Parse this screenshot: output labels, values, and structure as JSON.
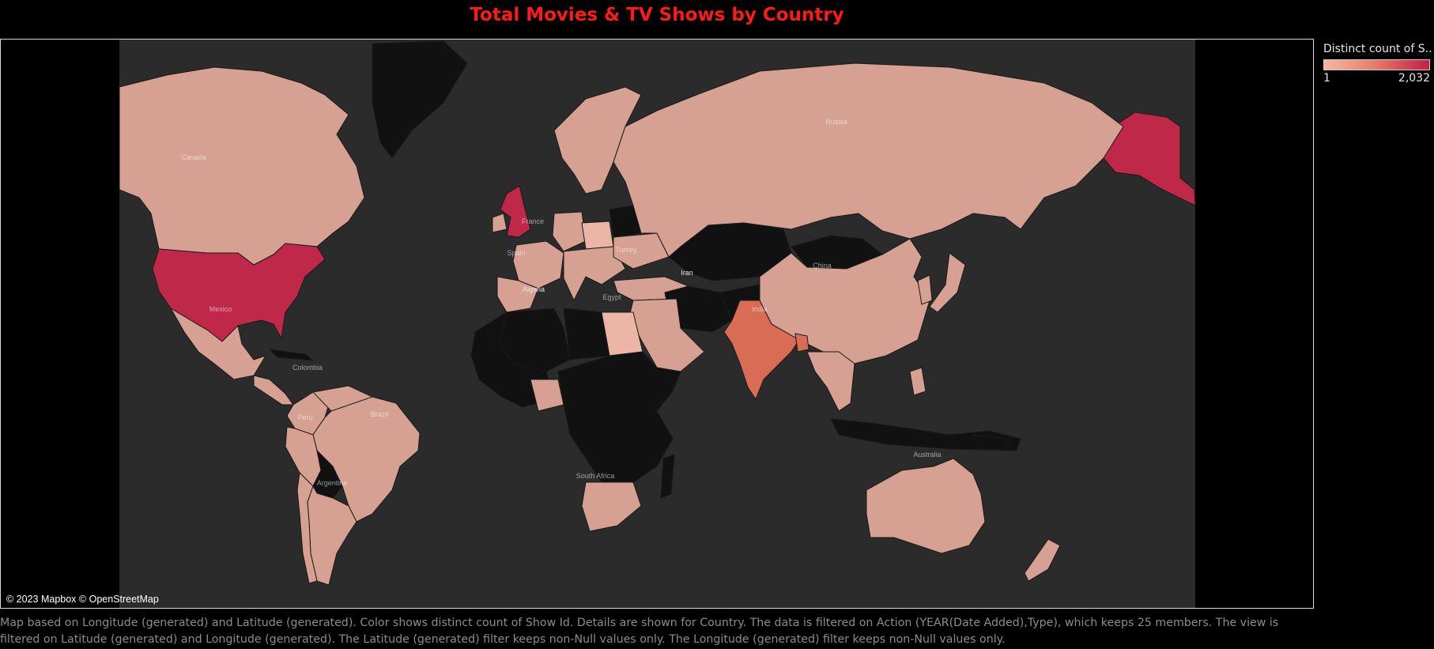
{
  "title": "Total Movies & TV Shows by Country",
  "legend": {
    "title": "Distinct count of S..",
    "min_label": "1",
    "max_label": "2,032",
    "color_low": "#f2b8a4",
    "color_high": "#c21f47"
  },
  "map": {
    "attribution": "© 2023 Mapbox © OpenStreetMap",
    "colors": {
      "ocean": "#2b2b2b",
      "high": "#c0284a",
      "medium": "#d96c55",
      "low": "#d6a092",
      "lowest": "#ecb6a6",
      "none": "#111111"
    },
    "labels": {
      "canada": "Canada",
      "russia": "Russia",
      "china": "China",
      "india": "India",
      "iran": "Iran",
      "algeria": "Algeria",
      "egypt": "Egypt",
      "brazil": "Brazil",
      "argentina": "Argentina",
      "australia": "Australia",
      "mexico": "Mexico",
      "france": "France",
      "turkey": "Turkey",
      "south_africa": "South Africa",
      "colombia": "Colombia",
      "peru": "Peru",
      "spain": "Spain"
    }
  },
  "caption": "Map based on Longitude (generated) and Latitude (generated).  Color shows distinct count of Show Id.  Details are shown for Country. The data is filtered on Action (YEAR(Date Added),Type), which keeps 25 members. The view is filtered on Latitude (generated) and Longitude (generated). The Latitude (generated) filter keeps non-Null values only. The Longitude (generated) filter keeps non-Null values only."
}
